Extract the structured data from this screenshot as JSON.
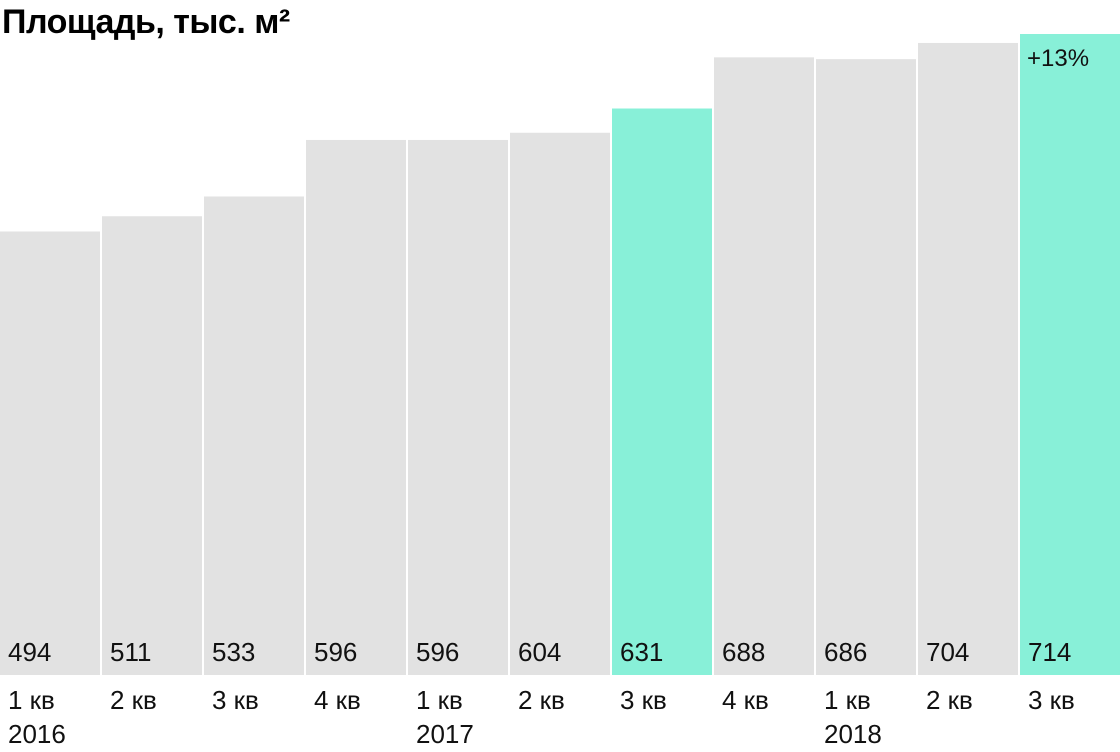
{
  "chart_data": {
    "type": "bar",
    "title": "Площадь, тыс. м²",
    "xlabel": "",
    "ylabel": "",
    "categories": [
      {
        "quarter": "1 кв",
        "year": "2016"
      },
      {
        "quarter": "2 кв",
        "year": ""
      },
      {
        "quarter": "3 кв",
        "year": ""
      },
      {
        "quarter": "4 кв",
        "year": ""
      },
      {
        "quarter": "1 кв",
        "year": "2017"
      },
      {
        "quarter": "2 кв",
        "year": ""
      },
      {
        "quarter": "3 кв",
        "year": ""
      },
      {
        "quarter": "4 кв",
        "year": ""
      },
      {
        "quarter": "1 кв",
        "year": "2018"
      },
      {
        "quarter": "2 кв",
        "year": ""
      },
      {
        "quarter": "3 кв",
        "year": ""
      }
    ],
    "values": [
      494,
      511,
      533,
      596,
      596,
      604,
      631,
      688,
      686,
      704,
      714
    ],
    "highlighted_indices": [
      6,
      10
    ],
    "annotation": {
      "index": 10,
      "text": "+13%"
    },
    "ylim": [
      0,
      714
    ],
    "grid": false,
    "colors": {
      "default": "#e2e2e2",
      "highlight": "#88f0d8"
    }
  }
}
